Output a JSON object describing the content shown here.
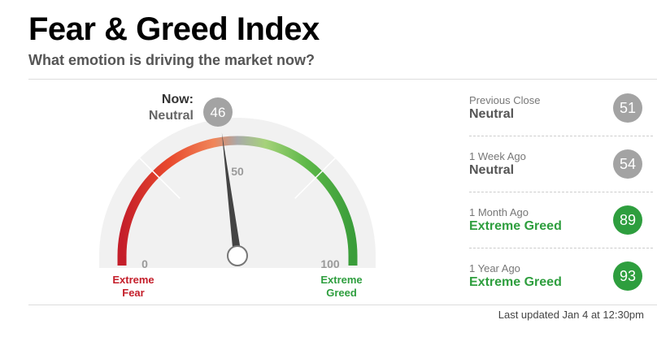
{
  "header": {
    "title": "Fear & Greed Index",
    "subtitle": "What emotion is driving the market now?"
  },
  "chart_data": {
    "type": "gauge",
    "now_label": "Now:",
    "now_rating": "Neutral",
    "value": 46,
    "xlim": [
      0,
      100
    ],
    "xticks": [
      0,
      50,
      100
    ],
    "low_label": "Extreme Fear",
    "high_label": "Extreme Greed"
  },
  "history": [
    {
      "label": "Previous Close",
      "rating": "Neutral",
      "value": 51,
      "color": "#a3a3a3"
    },
    {
      "label": "1 Week Ago",
      "rating": "Neutral",
      "value": 54,
      "color": "#a3a3a3"
    },
    {
      "label": "1 Month Ago",
      "rating": "Extreme Greed",
      "value": 89,
      "color": "#2e9e3e"
    },
    {
      "label": "1 Year Ago",
      "rating": "Extreme Greed",
      "value": 93,
      "color": "#2e9e3e"
    }
  ],
  "footer": "Last updated Jan 4 at 12:30pm"
}
